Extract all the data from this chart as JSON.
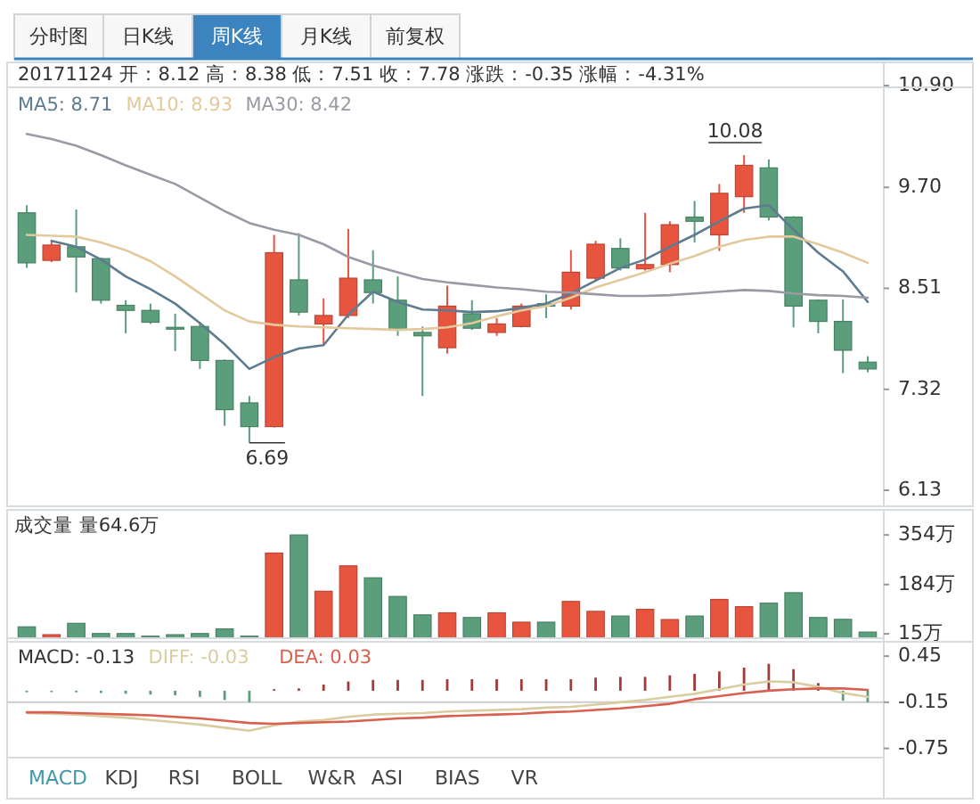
{
  "chart_data": [
    {
      "type": "candlestick",
      "subtitle": "20171124 开：8.12 高：8.38 低：7.51 收：7.78 涨跌：-0.35 涨幅：-4.31%",
      "categories": [
        null,
        null,
        null,
        null,
        null,
        null,
        null,
        null,
        null,
        null,
        null,
        null,
        null,
        null,
        null,
        null,
        null,
        null,
        null,
        null,
        null,
        null,
        null,
        null,
        null,
        null,
        null,
        null,
        null,
        null,
        null,
        null,
        null,
        null,
        null
      ],
      "ohlc": [
        [
          9.4,
          9.49,
          8.75,
          8.81
        ],
        [
          8.84,
          9.07,
          8.82,
          9.02
        ],
        [
          9.0,
          9.44,
          8.46,
          8.88
        ],
        [
          8.86,
          8.87,
          8.33,
          8.37
        ],
        [
          8.31,
          8.37,
          7.98,
          8.25
        ],
        [
          8.25,
          8.33,
          8.09,
          8.11
        ],
        [
          8.05,
          8.21,
          7.77,
          8.03
        ],
        [
          8.06,
          8.11,
          7.56,
          7.66
        ],
        [
          7.66,
          7.67,
          6.89,
          7.08
        ],
        [
          7.16,
          7.24,
          6.69,
          6.88
        ],
        [
          6.88,
          9.14,
          6.87,
          8.93
        ],
        [
          8.61,
          9.16,
          8.19,
          8.23
        ],
        [
          8.09,
          8.39,
          7.84,
          8.19
        ],
        [
          8.19,
          9.21,
          8.16,
          8.63
        ],
        [
          8.61,
          8.96,
          8.33,
          8.46
        ],
        [
          8.37,
          8.65,
          7.95,
          8.02
        ],
        [
          7.99,
          8.06,
          7.24,
          7.95
        ],
        [
          7.81,
          8.54,
          7.74,
          8.3
        ],
        [
          8.21,
          8.37,
          8.02,
          8.04
        ],
        [
          7.99,
          8.16,
          7.95,
          8.09
        ],
        [
          8.06,
          8.33,
          8.05,
          8.3
        ],
        [
          8.33,
          8.44,
          8.16,
          8.3
        ],
        [
          8.3,
          8.96,
          8.26,
          8.7
        ],
        [
          8.63,
          9.07,
          8.6,
          9.03
        ],
        [
          8.98,
          9.1,
          8.72,
          8.75
        ],
        [
          8.74,
          9.4,
          8.72,
          8.79
        ],
        [
          8.79,
          9.3,
          8.7,
          9.26
        ],
        [
          9.35,
          9.54,
          9.05,
          9.3
        ],
        [
          9.14,
          9.74,
          8.95,
          9.63
        ],
        [
          9.59,
          10.08,
          9.4,
          9.96
        ],
        [
          9.93,
          10.03,
          9.31,
          9.35
        ],
        [
          9.35,
          9.36,
          8.05,
          8.3
        ],
        [
          8.37,
          8.38,
          7.98,
          8.12
        ],
        [
          8.12,
          8.38,
          7.51,
          7.78
        ],
        [
          7.64,
          7.71,
          7.52,
          7.56
        ]
      ],
      "colors": [
        "#5a9e7c",
        "#e8553f",
        "#5a9e7c",
        "#5a9e7c",
        "#5a9e7c",
        "#5a9e7c",
        "#5a9e7c",
        "#5a9e7c",
        "#5a9e7c",
        "#5a9e7c",
        "#e8553f",
        "#5a9e7c",
        "#e8553f",
        "#e8553f",
        "#5a9e7c",
        "#5a9e7c",
        "#5a9e7c",
        "#e8553f",
        "#5a9e7c",
        "#e8553f",
        "#e8553f",
        "#5a9e7c",
        "#e8553f",
        "#e8553f",
        "#5a9e7c",
        "#e8553f",
        "#e8553f",
        "#5a9e7c",
        "#e8553f",
        "#e8553f",
        "#5a9e7c",
        "#5a9e7c",
        "#5a9e7c",
        "#5a9e7c",
        "#5a9e7c"
      ],
      "series": [
        {
          "type": "line",
          "name": "MA5: 8.71",
          "color": "#5e7b8f",
          "values": [
            null,
            9.07,
            9.0,
            8.85,
            8.65,
            8.5,
            8.33,
            8.1,
            7.85,
            7.56,
            7.7,
            7.8,
            7.84,
            8.2,
            8.47,
            8.35,
            8.26,
            8.25,
            8.23,
            8.24,
            8.28,
            8.33,
            8.45,
            8.6,
            8.75,
            8.85,
            9.0,
            9.14,
            9.3,
            9.45,
            9.49,
            9.2,
            8.93,
            8.71,
            8.35
          ]
        },
        {
          "type": "line",
          "name": "MA10: 8.93",
          "color": "#e3c89c",
          "values": [
            9.14,
            9.13,
            9.12,
            9.05,
            8.96,
            8.83,
            8.65,
            8.45,
            8.25,
            8.12,
            8.08,
            8.06,
            8.05,
            8.04,
            8.03,
            8.02,
            8.03,
            8.05,
            8.1,
            8.18,
            8.25,
            8.3,
            8.4,
            8.52,
            8.61,
            8.7,
            8.8,
            8.89,
            9.0,
            9.08,
            9.12,
            9.12,
            9.03,
            8.93,
            8.81
          ]
        },
        {
          "type": "line",
          "name": "MA30: 8.42",
          "color": "#9a9aa6",
          "values": [
            10.33,
            10.27,
            10.19,
            10.08,
            9.96,
            9.85,
            9.74,
            9.58,
            9.42,
            9.28,
            9.2,
            9.14,
            9.03,
            8.88,
            8.78,
            8.7,
            8.62,
            8.58,
            8.55,
            8.52,
            8.5,
            8.47,
            8.46,
            8.44,
            8.42,
            8.42,
            8.43,
            8.45,
            8.47,
            8.49,
            8.48,
            8.45,
            8.43,
            8.42,
            8.4
          ]
        }
      ],
      "ylim": [
        6.13,
        10.9
      ],
      "yticks": [
        {
          "value": 10.9,
          "label": "10.90"
        },
        {
          "value": 9.7,
          "label": "9.70"
        },
        8.51,
        7.32,
        6.13
      ],
      "legend": "top left",
      "annotations": [
        "分时图",
        "日K线",
        "周K线",
        "月K线",
        "前复权",
        "6.69",
        "10.08"
      ]
    },
    {
      "type": "bar",
      "title": "成交量 量64.6万",
      "categories": [
        null,
        null,
        null,
        null,
        null,
        null,
        null,
        null,
        null,
        null,
        null,
        null,
        null,
        null,
        null,
        null,
        null,
        null,
        null,
        null,
        null,
        null,
        null,
        null,
        null,
        null,
        null,
        null,
        null,
        null,
        null,
        null,
        null,
        null,
        null
      ],
      "values": [
        39,
        12,
        51,
        16,
        16,
        7,
        12,
        16,
        32,
        7,
        292,
        354,
        161,
        248,
        207,
        143,
        80,
        87,
        71,
        87,
        55,
        55,
        126,
        92,
        76,
        99,
        64,
        76,
        133,
        108,
        120,
        156,
        71,
        64.6,
        21
      ],
      "colors": [
        "#5a9e7c",
        "#e8553f",
        "#5a9e7c",
        "#5a9e7c",
        "#5a9e7c",
        "#5a9e7c",
        "#5a9e7c",
        "#5a9e7c",
        "#5a9e7c",
        "#5a9e7c",
        "#e8553f",
        "#5a9e7c",
        "#e8553f",
        "#e8553f",
        "#5a9e7c",
        "#5a9e7c",
        "#5a9e7c",
        "#e8553f",
        "#5a9e7c",
        "#e8553f",
        "#e8553f",
        "#5a9e7c",
        "#e8553f",
        "#e8553f",
        "#5a9e7c",
        "#e8553f",
        "#e8553f",
        "#5a9e7c",
        "#e8553f",
        "#e8553f",
        "#5a9e7c",
        "#5a9e7c",
        "#5a9e7c",
        "#5a9e7c",
        "#5a9e7c"
      ],
      "ylim": [
        0,
        440
      ],
      "yticks": [
        {
          "value": 354,
          "label": "354万"
        },
        {
          "value": 184,
          "label": "184万"
        },
        {
          "value": 15,
          "label": "15万"
        }
      ]
    },
    {
      "type": "line",
      "categories": [
        null,
        null,
        null,
        null,
        null,
        null,
        null,
        null,
        null,
        null,
        null,
        null,
        null,
        null,
        null,
        null,
        null,
        null,
        null,
        null,
        null,
        null,
        null,
        null,
        null,
        null,
        null,
        null,
        null,
        null,
        null,
        null,
        null,
        null,
        null
      ],
      "series": [
        {
          "type": "bar",
          "name": "MACD: -0.13",
          "color": "#333333",
          "colors": [
            "#5a9e7c",
            "#5a9e7c",
            "#5a9e7c",
            "#5a9e7c",
            "#5a9e7c",
            "#5a9e7c",
            "#5a9e7c",
            "#5a9e7c",
            "#5a9e7c",
            "#5a9e7c",
            "#a33a3a",
            "#a33a3a",
            "#a33a3a",
            "#a33a3a",
            "#a33a3a",
            "#a33a3a",
            "#a33a3a",
            "#a33a3a",
            "#a33a3a",
            "#a33a3a",
            "#a33a3a",
            "#a33a3a",
            "#a33a3a",
            "#a33a3a",
            "#a33a3a",
            "#a33a3a",
            "#a33a3a",
            "#a33a3a",
            "#a33a3a",
            "#a33a3a",
            "#a33a3a",
            "#a33a3a",
            "#a33a3a",
            "#5a9e7c",
            "#5a9e7c"
          ],
          "values": [
            -0.02,
            -0.01,
            -0.02,
            -0.03,
            -0.04,
            -0.05,
            -0.06,
            -0.08,
            -0.12,
            -0.15,
            0.02,
            0.03,
            0.08,
            0.12,
            0.14,
            0.14,
            0.14,
            0.15,
            0.15,
            0.15,
            0.15,
            0.15,
            0.15,
            0.17,
            0.18,
            0.18,
            0.2,
            0.22,
            0.25,
            0.3,
            0.35,
            0.28,
            0.1,
            -0.13,
            -0.15
          ]
        },
        {
          "type": "line",
          "name": "DIFF: -0.03",
          "color": "#d9cda0",
          "values": [
            -0.29,
            -0.3,
            -0.31,
            -0.33,
            -0.35,
            -0.38,
            -0.41,
            -0.44,
            -0.48,
            -0.52,
            -0.45,
            -0.4,
            -0.38,
            -0.34,
            -0.31,
            -0.3,
            -0.29,
            -0.27,
            -0.26,
            -0.25,
            -0.24,
            -0.22,
            -0.21,
            -0.18,
            -0.15,
            -0.12,
            -0.08,
            -0.04,
            0.02,
            0.08,
            0.12,
            0.11,
            0.05,
            -0.03,
            -0.08
          ]
        },
        {
          "type": "line",
          "name": "DEA: 0.03",
          "color": "#d9604f",
          "values": [
            -0.28,
            -0.28,
            -0.29,
            -0.3,
            -0.31,
            -0.32,
            -0.34,
            -0.36,
            -0.39,
            -0.42,
            -0.43,
            -0.42,
            -0.41,
            -0.4,
            -0.38,
            -0.36,
            -0.35,
            -0.33,
            -0.32,
            -0.31,
            -0.3,
            -0.28,
            -0.27,
            -0.25,
            -0.23,
            -0.2,
            -0.17,
            -0.11,
            -0.07,
            -0.03,
            0.0,
            0.02,
            0.03,
            0.03,
            0.01
          ]
        }
      ],
      "ylim": [
        -0.87,
        0.59
      ],
      "yticks": [
        0.45,
        -0.15,
        -0.75
      ],
      "ref_lines": [
        {
          "axis": "y",
          "value": -0.15,
          "color": "#cccccc"
        }
      ],
      "legend": "top left",
      "annotations": [
        "MACD",
        "KDJ",
        "RSI",
        "BOLL",
        "W&R",
        "ASI",
        "BIAS",
        "VR"
      ]
    }
  ]
}
